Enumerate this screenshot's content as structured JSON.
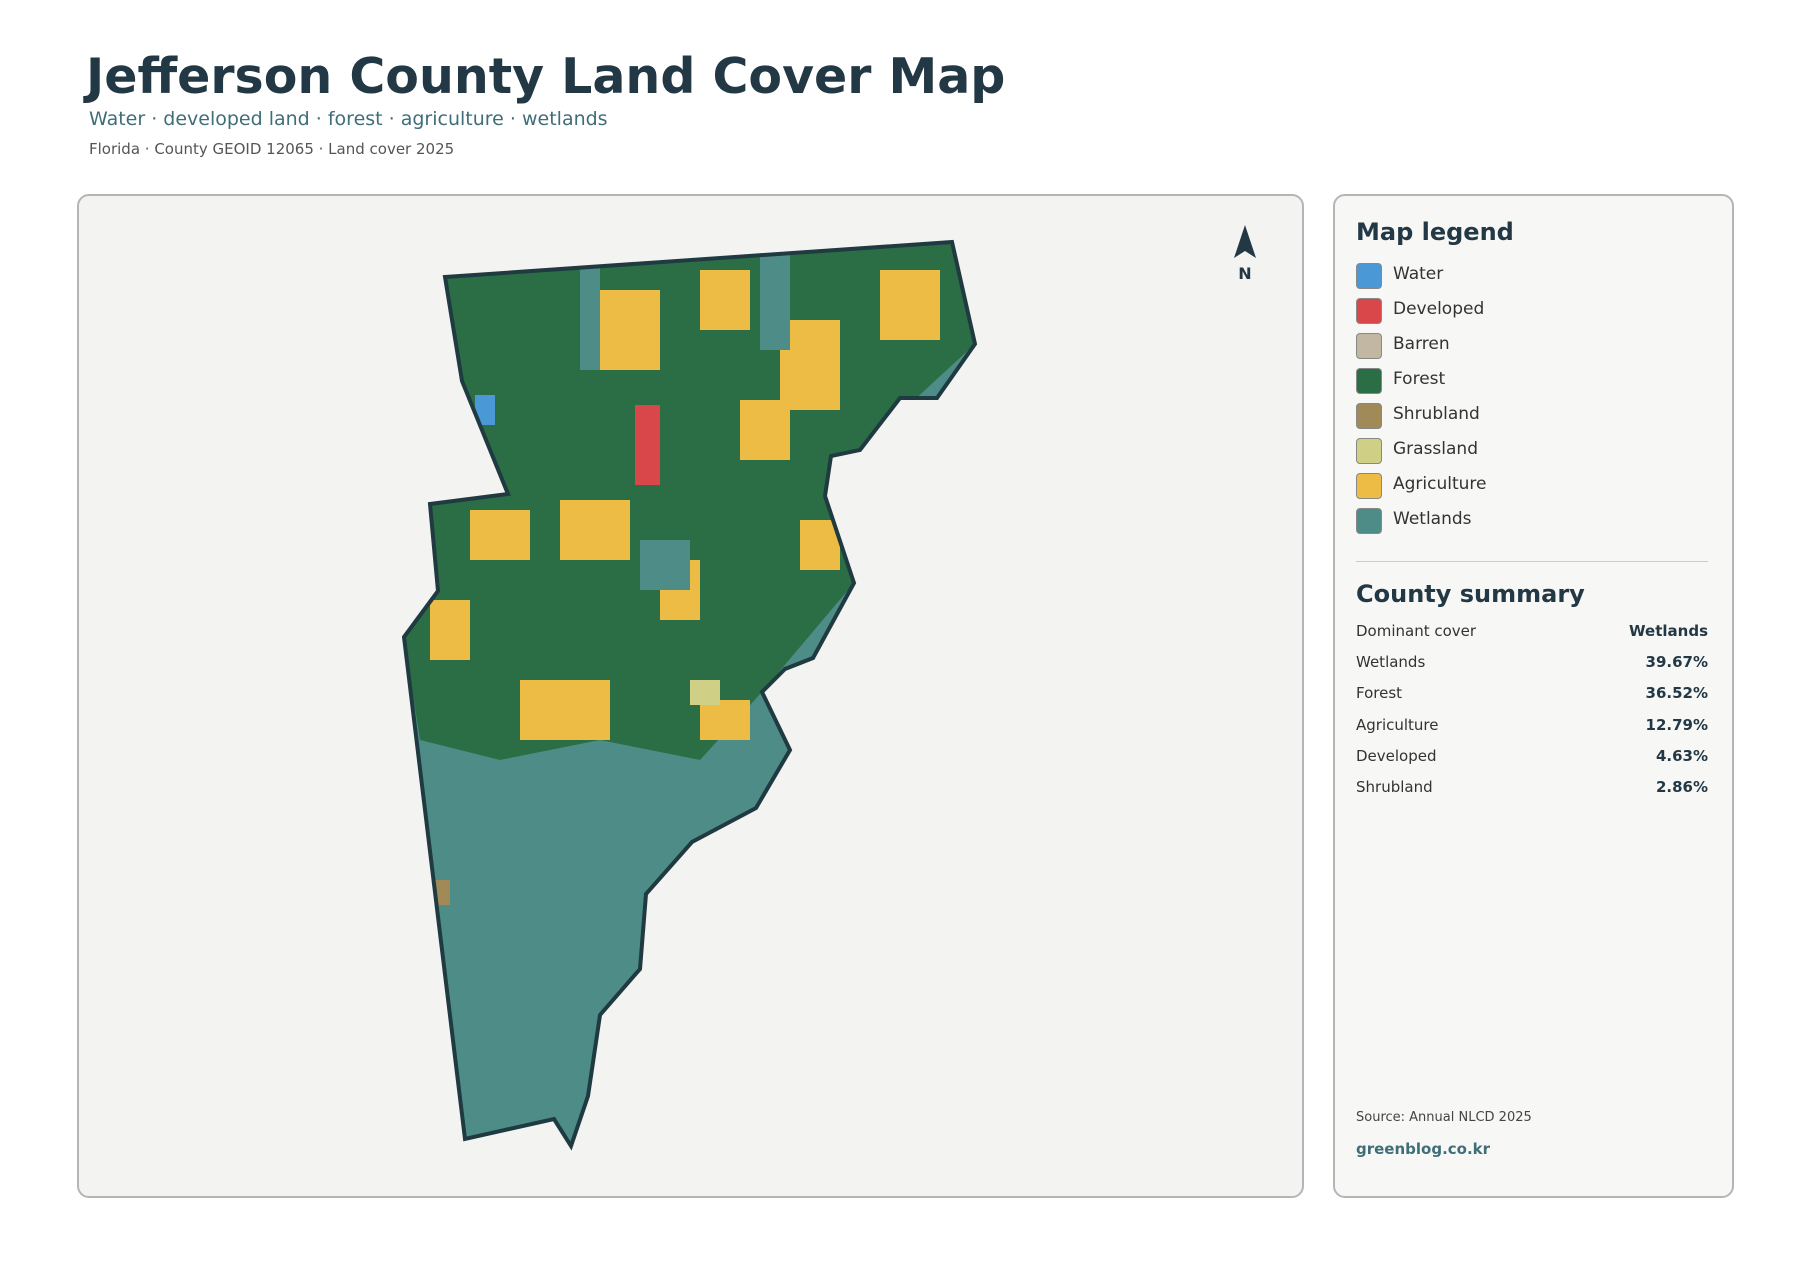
{
  "header": {
    "title": "Jefferson County Land Cover Map",
    "subtitle": "Water · developed land · forest · agriculture · wetlands",
    "meta": "Florida · County GEOID 12065 · Land cover 2025"
  },
  "map": {
    "north_label": "N"
  },
  "legend": {
    "title": "Map legend",
    "items": [
      {
        "label": "Water",
        "color": "#4a98d6"
      },
      {
        "label": "Developed",
        "color": "#d9474a"
      },
      {
        "label": "Barren",
        "color": "#c2b7a3"
      },
      {
        "label": "Forest",
        "color": "#2b6e45"
      },
      {
        "label": "Shrubland",
        "color": "#a08a58"
      },
      {
        "label": "Grassland",
        "color": "#cfcf86"
      },
      {
        "label": "Agriculture",
        "color": "#ecbc45"
      },
      {
        "label": "Wetlands",
        "color": "#4e8d87"
      }
    ]
  },
  "summary": {
    "title": "County summary",
    "rows": [
      [
        "Dominant cover",
        "Wetlands"
      ],
      [
        "Wetlands",
        "39.67%"
      ],
      [
        "Forest",
        "36.52%"
      ],
      [
        "Agriculture",
        "12.79%"
      ],
      [
        "Developed",
        "4.63%"
      ],
      [
        "Shrubland",
        "2.86%"
      ]
    ]
  },
  "footer": {
    "source": "Source: Annual NLCD 2025",
    "site": "greenblog.co.kr"
  }
}
